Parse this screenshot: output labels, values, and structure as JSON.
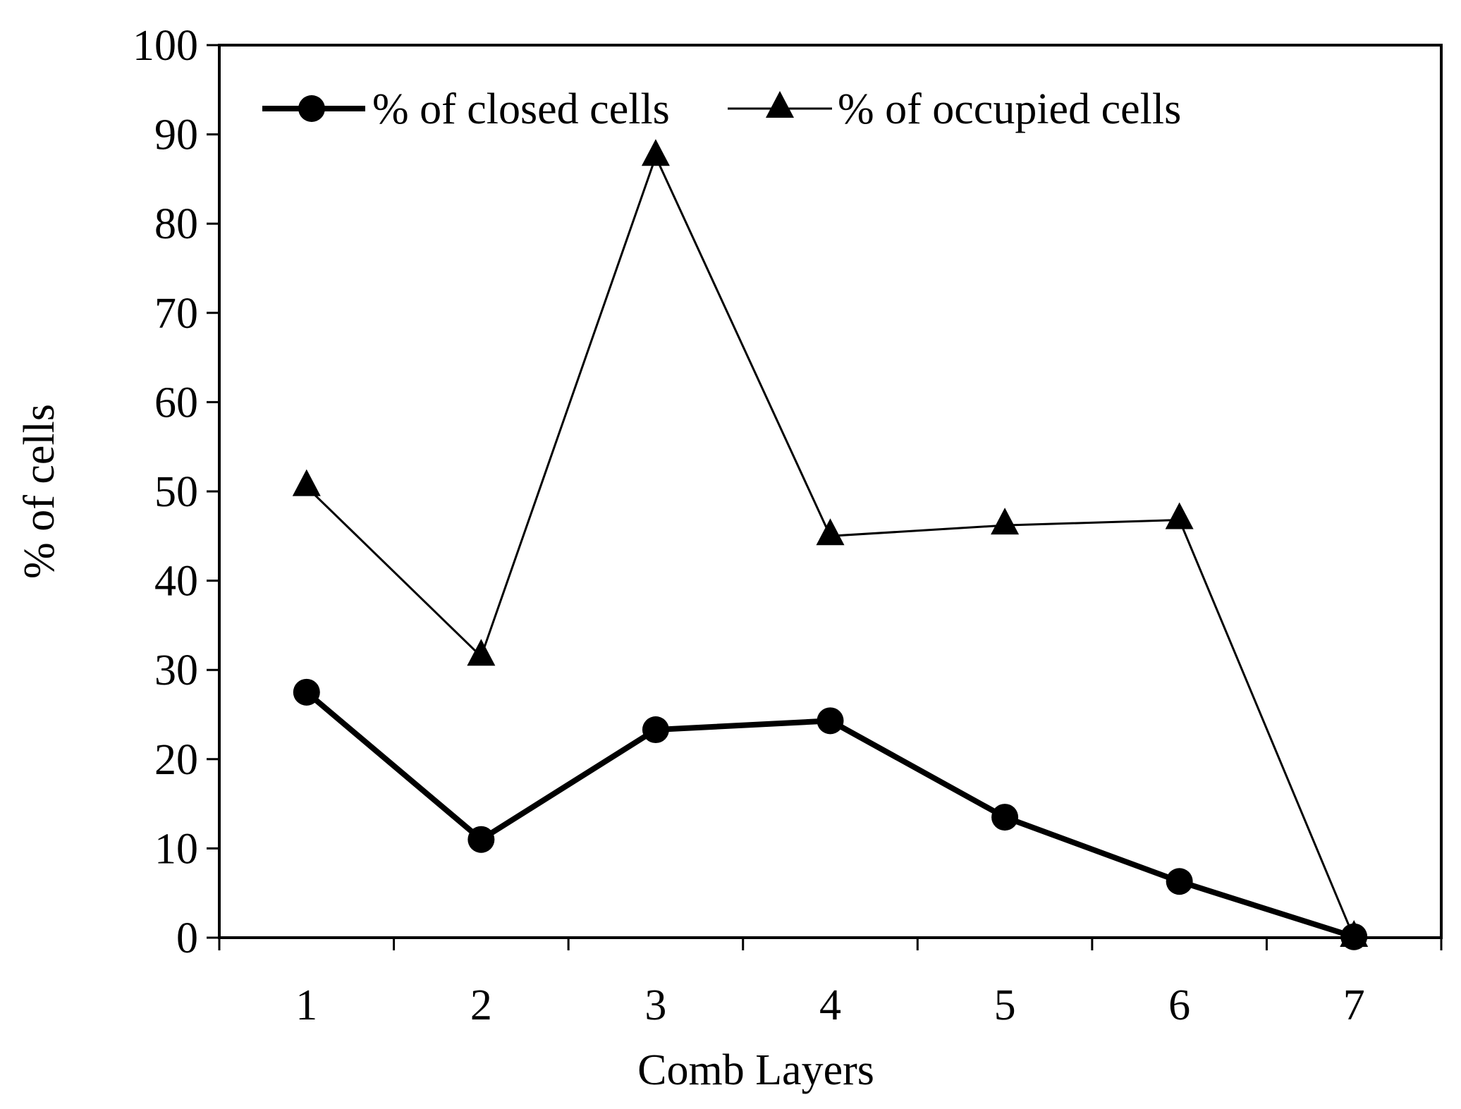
{
  "chart_data": {
    "type": "line",
    "title": "",
    "xlabel": "Comb Layers",
    "ylabel": "% of cells",
    "categories": [
      "1",
      "2",
      "3",
      "4",
      "5",
      "6",
      "7"
    ],
    "ylim": [
      0,
      100
    ],
    "yticks": [
      "0",
      "10",
      "20",
      "30",
      "40",
      "50",
      "60",
      "70",
      "80",
      "90",
      "100"
    ],
    "grid": false,
    "legend_position": "top",
    "series": [
      {
        "name": "% of closed cells",
        "marker": "circle",
        "line_style": "thick",
        "color": "#000000",
        "values": [
          27.5,
          11,
          23.3,
          24.3,
          13.5,
          6.3,
          0.1
        ]
      },
      {
        "name": "% of occupied cells",
        "marker": "triangle",
        "line_style": "thin",
        "color": "#000000",
        "values": [
          50.5,
          31.5,
          87.5,
          45,
          46.2,
          46.8,
          0
        ]
      }
    ]
  }
}
